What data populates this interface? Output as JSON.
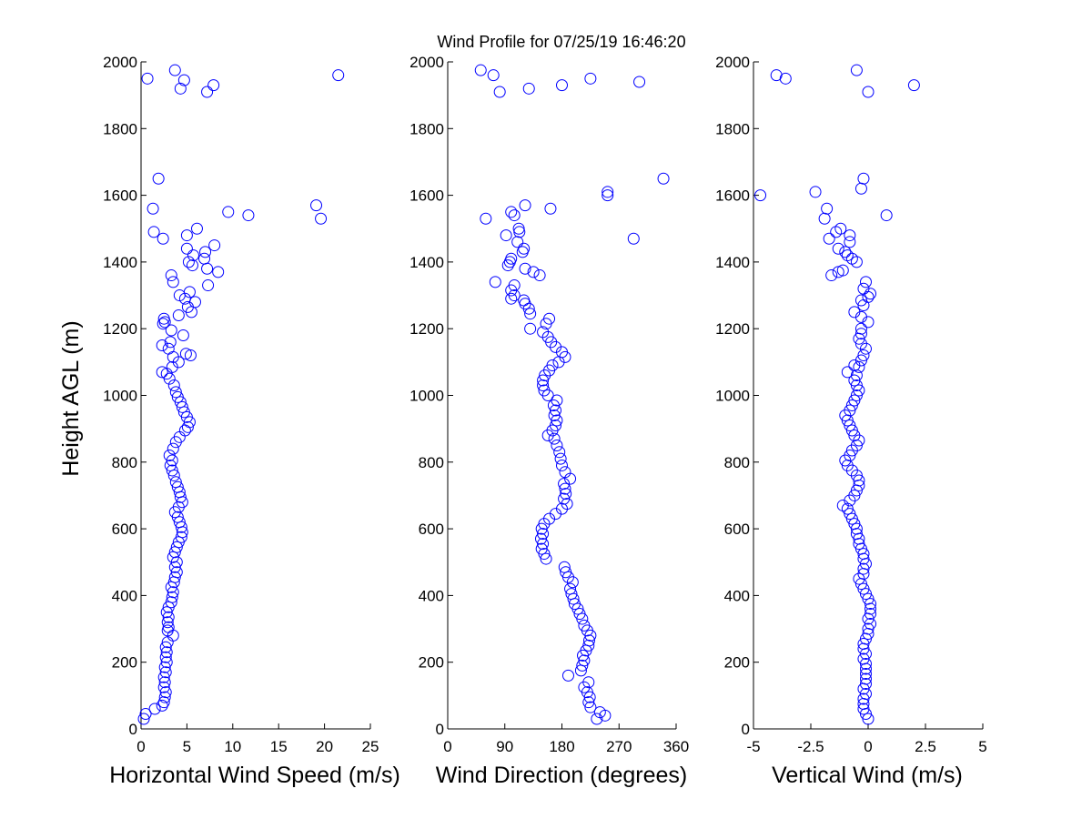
{
  "figure": {
    "title": "Wind Profile for  07/25/19 16:46:20",
    "ylabel": "Height AGL (m)",
    "marker_color": "#0000ff"
  },
  "chart_data": [
    {
      "type": "scatter",
      "xlabel": "Horizontal Wind Speed (m/s)",
      "ylabel": "Height AGL (m)",
      "xlim": [
        0,
        25
      ],
      "ylim": [
        0,
        2000
      ],
      "xticks": [
        "0",
        "5",
        "10",
        "15",
        "20",
        "25"
      ],
      "yticks": [
        "0",
        "200",
        "400",
        "600",
        "800",
        "1000",
        "1200",
        "1400",
        "1600",
        "1800",
        "2000"
      ],
      "marker": "open-circle",
      "points": [
        [
          0.3,
          30
        ],
        [
          0.5,
          45
        ],
        [
          1.5,
          60
        ],
        [
          2.3,
          70
        ],
        [
          2.5,
          80
        ],
        [
          2.6,
          95
        ],
        [
          2.7,
          110
        ],
        [
          2.5,
          125
        ],
        [
          2.6,
          140
        ],
        [
          2.5,
          155
        ],
        [
          2.7,
          170
        ],
        [
          2.6,
          185
        ],
        [
          2.8,
          200
        ],
        [
          2.7,
          215
        ],
        [
          2.8,
          230
        ],
        [
          2.7,
          245
        ],
        [
          2.9,
          260
        ],
        [
          3.5,
          280
        ],
        [
          2.9,
          295
        ],
        [
          3.0,
          305
        ],
        [
          2.9,
          320
        ],
        [
          3.0,
          335
        ],
        [
          2.8,
          350
        ],
        [
          3.0,
          365
        ],
        [
          3.3,
          380
        ],
        [
          3.4,
          395
        ],
        [
          3.5,
          410
        ],
        [
          3.3,
          425
        ],
        [
          3.6,
          440
        ],
        [
          3.7,
          455
        ],
        [
          3.9,
          470
        ],
        [
          3.7,
          485
        ],
        [
          3.9,
          500
        ],
        [
          3.5,
          515
        ],
        [
          3.7,
          530
        ],
        [
          3.9,
          545
        ],
        [
          4.1,
          560
        ],
        [
          4.4,
          575
        ],
        [
          4.5,
          590
        ],
        [
          4.4,
          605
        ],
        [
          4.2,
          620
        ],
        [
          4.0,
          635
        ],
        [
          3.7,
          650
        ],
        [
          4.1,
          665
        ],
        [
          4.5,
          680
        ],
        [
          4.3,
          695
        ],
        [
          4.2,
          710
        ],
        [
          4.0,
          725
        ],
        [
          3.8,
          740
        ],
        [
          3.6,
          760
        ],
        [
          3.4,
          775
        ],
        [
          3.2,
          790
        ],
        [
          3.4,
          805
        ],
        [
          3.1,
          820
        ],
        [
          3.5,
          840
        ],
        [
          3.8,
          860
        ],
        [
          4.2,
          875
        ],
        [
          4.8,
          895
        ],
        [
          5.1,
          905
        ],
        [
          5.3,
          920
        ],
        [
          5.0,
          935
        ],
        [
          4.7,
          950
        ],
        [
          4.5,
          965
        ],
        [
          4.3,
          980
        ],
        [
          4.0,
          995
        ],
        [
          3.8,
          1010
        ],
        [
          3.6,
          1030
        ],
        [
          3.1,
          1050
        ],
        [
          2.8,
          1065
        ],
        [
          2.3,
          1070
        ],
        [
          3.4,
          1085
        ],
        [
          4.1,
          1100
        ],
        [
          3.5,
          1115
        ],
        [
          4.9,
          1125
        ],
        [
          5.4,
          1120
        ],
        [
          3.0,
          1140
        ],
        [
          2.3,
          1150
        ],
        [
          3.2,
          1160
        ],
        [
          4.6,
          1180
        ],
        [
          3.3,
          1195
        ],
        [
          2.4,
          1215
        ],
        [
          2.6,
          1220
        ],
        [
          2.5,
          1230
        ],
        [
          4.1,
          1240
        ],
        [
          5.5,
          1250
        ],
        [
          5.1,
          1265
        ],
        [
          5.9,
          1280
        ],
        [
          4.8,
          1290
        ],
        [
          5.3,
          1310
        ],
        [
          4.2,
          1300
        ],
        [
          3.5,
          1340
        ],
        [
          3.3,
          1360
        ],
        [
          7.3,
          1330
        ],
        [
          8.4,
          1370
        ],
        [
          7.2,
          1380
        ],
        [
          5.6,
          1390
        ],
        [
          5.2,
          1400
        ],
        [
          6.9,
          1410
        ],
        [
          5.7,
          1420
        ],
        [
          7.0,
          1430
        ],
        [
          5.0,
          1440
        ],
        [
          8.0,
          1450
        ],
        [
          5.0,
          1480
        ],
        [
          6.1,
          1500
        ],
        [
          1.4,
          1490
        ],
        [
          2.4,
          1470
        ],
        [
          9.5,
          1550
        ],
        [
          11.7,
          1540
        ],
        [
          19.1,
          1570
        ],
        [
          19.6,
          1530
        ],
        [
          1.3,
          1560
        ],
        [
          1.9,
          1650
        ],
        [
          0.7,
          1950
        ],
        [
          3.7,
          1975
        ],
        [
          4.3,
          1920
        ],
        [
          4.7,
          1945
        ],
        [
          7.2,
          1910
        ],
        [
          7.9,
          1930
        ],
        [
          21.5,
          1960
        ]
      ]
    },
    {
      "type": "scatter",
      "xlabel": "Wind Direction (degrees)",
      "ylabel": "",
      "xlim": [
        0,
        360
      ],
      "ylim": [
        0,
        2000
      ],
      "xticks": [
        "0",
        "90",
        "180",
        "270",
        "360"
      ],
      "yticks": [
        "0",
        "200",
        "400",
        "600",
        "800",
        "1000",
        "1200",
        "1400",
        "1600",
        "1800",
        "2000"
      ],
      "marker": "open-circle",
      "points": [
        [
          235,
          30
        ],
        [
          248,
          40
        ],
        [
          240,
          50
        ],
        [
          225,
          65
        ],
        [
          222,
          80
        ],
        [
          224,
          95
        ],
        [
          220,
          110
        ],
        [
          215,
          125
        ],
        [
          222,
          140
        ],
        [
          190,
          160
        ],
        [
          210,
          175
        ],
        [
          212,
          190
        ],
        [
          215,
          205
        ],
        [
          213,
          220
        ],
        [
          218,
          235
        ],
        [
          222,
          250
        ],
        [
          223,
          265
        ],
        [
          225,
          280
        ],
        [
          220,
          295
        ],
        [
          215,
          310
        ],
        [
          212,
          330
        ],
        [
          208,
          345
        ],
        [
          205,
          360
        ],
        [
          200,
          375
        ],
        [
          198,
          390
        ],
        [
          195,
          405
        ],
        [
          193,
          420
        ],
        [
          197,
          440
        ],
        [
          190,
          455
        ],
        [
          186,
          470
        ],
        [
          184,
          485
        ],
        [
          155,
          510
        ],
        [
          152,
          525
        ],
        [
          148,
          540
        ],
        [
          150,
          555
        ],
        [
          147,
          570
        ],
        [
          150,
          585
        ],
        [
          148,
          600
        ],
        [
          152,
          615
        ],
        [
          160,
          630
        ],
        [
          170,
          645
        ],
        [
          180,
          660
        ],
        [
          188,
          675
        ],
        [
          183,
          690
        ],
        [
          186,
          705
        ],
        [
          185,
          720
        ],
        [
          183,
          735
        ],
        [
          193,
          750
        ],
        [
          185,
          770
        ],
        [
          180,
          790
        ],
        [
          178,
          810
        ],
        [
          176,
          830
        ],
        [
          172,
          850
        ],
        [
          168,
          870
        ],
        [
          158,
          880
        ],
        [
          165,
          895
        ],
        [
          170,
          910
        ],
        [
          172,
          925
        ],
        [
          168,
          940
        ],
        [
          170,
          955
        ],
        [
          167,
          970
        ],
        [
          172,
          985
        ],
        [
          158,
          1000
        ],
        [
          152,
          1015
        ],
        [
          150,
          1030
        ],
        [
          150,
          1045
        ],
        [
          153,
          1060
        ],
        [
          160,
          1075
        ],
        [
          165,
          1090
        ],
        [
          175,
          1100
        ],
        [
          185,
          1115
        ],
        [
          180,
          1130
        ],
        [
          170,
          1145
        ],
        [
          163,
          1160
        ],
        [
          158,
          1175
        ],
        [
          150,
          1190
        ],
        [
          130,
          1200
        ],
        [
          155,
          1215
        ],
        [
          160,
          1230
        ],
        [
          130,
          1245
        ],
        [
          128,
          1260
        ],
        [
          122,
          1275
        ],
        [
          120,
          1285
        ],
        [
          100,
          1290
        ],
        [
          105,
          1300
        ],
        [
          100,
          1315
        ],
        [
          105,
          1330
        ],
        [
          75,
          1340
        ],
        [
          145,
          1360
        ],
        [
          135,
          1370
        ],
        [
          122,
          1380
        ],
        [
          95,
          1390
        ],
        [
          98,
          1400
        ],
        [
          100,
          1410
        ],
        [
          118,
          1430
        ],
        [
          120,
          1440
        ],
        [
          110,
          1460
        ],
        [
          92,
          1480
        ],
        [
          113,
          1490
        ],
        [
          112,
          1500
        ],
        [
          60,
          1530
        ],
        [
          105,
          1540
        ],
        [
          100,
          1550
        ],
        [
          122,
          1570
        ],
        [
          162,
          1560
        ],
        [
          252,
          1600
        ],
        [
          252,
          1610
        ],
        [
          293,
          1470
        ],
        [
          340,
          1650
        ],
        [
          52,
          1975
        ],
        [
          72,
          1960
        ],
        [
          82,
          1910
        ],
        [
          128,
          1920
        ],
        [
          180,
          1930
        ],
        [
          225,
          1950
        ],
        [
          302,
          1940
        ]
      ]
    },
    {
      "type": "scatter",
      "xlabel": "Vertical Wind (m/s)",
      "ylabel": "",
      "xlim": [
        -5,
        5
      ],
      "ylim": [
        0,
        2000
      ],
      "xticks": [
        "-5",
        "-2.5",
        "0",
        "2.5",
        "5"
      ],
      "yticks": [
        "0",
        "200",
        "400",
        "600",
        "800",
        "1000",
        "1200",
        "1400",
        "1600",
        "1800",
        "2000"
      ],
      "marker": "open-circle",
      "points": [
        [
          0.0,
          30
        ],
        [
          -0.1,
          45
        ],
        [
          -0.2,
          60
        ],
        [
          -0.2,
          75
        ],
        [
          -0.2,
          90
        ],
        [
          -0.1,
          105
        ],
        [
          -0.2,
          120
        ],
        [
          -0.1,
          135
        ],
        [
          -0.1,
          150
        ],
        [
          -0.1,
          165
        ],
        [
          -0.1,
          180
        ],
        [
          -0.1,
          195
        ],
        [
          -0.2,
          210
        ],
        [
          -0.1,
          225
        ],
        [
          -0.2,
          240
        ],
        [
          -0.2,
          255
        ],
        [
          -0.1,
          270
        ],
        [
          0.0,
          285
        ],
        [
          0.0,
          300
        ],
        [
          0.1,
          315
        ],
        [
          0.0,
          330
        ],
        [
          0.1,
          345
        ],
        [
          0.1,
          360
        ],
        [
          0.1,
          375
        ],
        [
          0.0,
          390
        ],
        [
          -0.1,
          405
        ],
        [
          -0.2,
          420
        ],
        [
          -0.3,
          435
        ],
        [
          -0.4,
          450
        ],
        [
          -0.2,
          465
        ],
        [
          -0.2,
          480
        ],
        [
          -0.1,
          495
        ],
        [
          -0.2,
          510
        ],
        [
          -0.2,
          525
        ],
        [
          -0.3,
          540
        ],
        [
          -0.4,
          555
        ],
        [
          -0.4,
          570
        ],
        [
          -0.5,
          585
        ],
        [
          -0.5,
          600
        ],
        [
          -0.6,
          615
        ],
        [
          -0.7,
          630
        ],
        [
          -0.8,
          645
        ],
        [
          -0.9,
          660
        ],
        [
          -1.1,
          670
        ],
        [
          -0.8,
          685
        ],
        [
          -0.6,
          700
        ],
        [
          -0.5,
          715
        ],
        [
          -0.4,
          730
        ],
        [
          -0.4,
          745
        ],
        [
          -0.5,
          760
        ],
        [
          -0.7,
          775
        ],
        [
          -0.9,
          790
        ],
        [
          -1.0,
          805
        ],
        [
          -0.8,
          820
        ],
        [
          -0.7,
          835
        ],
        [
          -0.5,
          850
        ],
        [
          -0.4,
          865
        ],
        [
          -0.6,
          880
        ],
        [
          -0.7,
          895
        ],
        [
          -0.8,
          910
        ],
        [
          -0.9,
          925
        ],
        [
          -1.0,
          940
        ],
        [
          -0.8,
          955
        ],
        [
          -0.7,
          970
        ],
        [
          -0.6,
          985
        ],
        [
          -0.5,
          1000
        ],
        [
          -0.4,
          1015
        ],
        [
          -0.5,
          1030
        ],
        [
          -0.6,
          1045
        ],
        [
          -0.5,
          1060
        ],
        [
          -0.9,
          1070
        ],
        [
          -0.4,
          1085
        ],
        [
          -0.6,
          1090
        ],
        [
          -0.3,
          1105
        ],
        [
          -0.2,
          1120
        ],
        [
          -0.1,
          1140
        ],
        [
          -0.3,
          1155
        ],
        [
          -0.4,
          1170
        ],
        [
          -0.3,
          1185
        ],
        [
          -0.3,
          1200
        ],
        [
          0.0,
          1220
        ],
        [
          -0.3,
          1235
        ],
        [
          -0.6,
          1250
        ],
        [
          -0.2,
          1270
        ],
        [
          -0.3,
          1285
        ],
        [
          0.0,
          1295
        ],
        [
          0.1,
          1305
        ],
        [
          -0.2,
          1320
        ],
        [
          -0.1,
          1340
        ],
        [
          -1.6,
          1360
        ],
        [
          -1.1,
          1375
        ],
        [
          -1.3,
          1370
        ],
        [
          -0.5,
          1400
        ],
        [
          -0.7,
          1410
        ],
        [
          -0.9,
          1420
        ],
        [
          -1.0,
          1430
        ],
        [
          -1.3,
          1440
        ],
        [
          -0.8,
          1460
        ],
        [
          -1.7,
          1470
        ],
        [
          -0.8,
          1480
        ],
        [
          -1.4,
          1490
        ],
        [
          -1.2,
          1500
        ],
        [
          -1.9,
          1530
        ],
        [
          -1.8,
          1560
        ],
        [
          0.8,
          1540
        ],
        [
          -2.3,
          1610
        ],
        [
          -0.3,
          1620
        ],
        [
          -0.2,
          1650
        ],
        [
          -4.7,
          1600
        ],
        [
          -4.0,
          1960
        ],
        [
          -3.6,
          1950
        ],
        [
          -0.5,
          1975
        ],
        [
          0.0,
          1910
        ],
        [
          2.0,
          1930
        ]
      ]
    }
  ]
}
